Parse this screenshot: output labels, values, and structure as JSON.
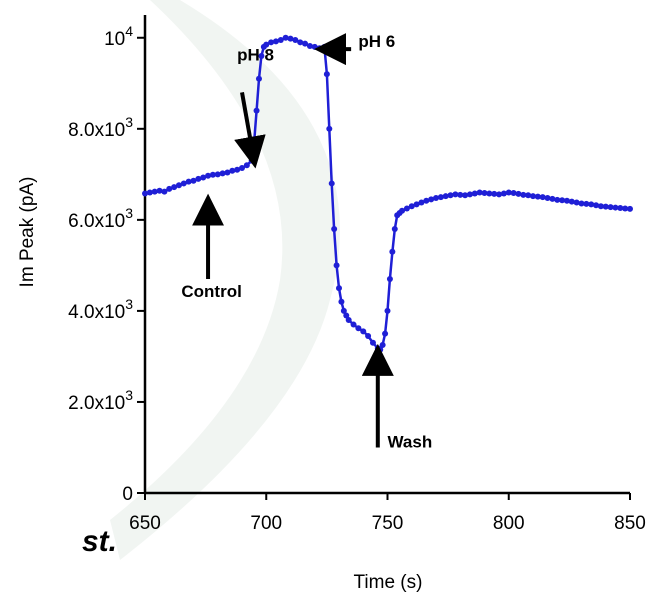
{
  "chart_data": {
    "type": "line",
    "title": "",
    "xlabel": "Time (s)",
    "ylabel": "Im Peak (pA)",
    "xlim": [
      650,
      850
    ],
    "ylim": [
      0,
      10500
    ],
    "xticks": [
      650,
      700,
      750,
      800,
      850
    ],
    "yticks": [
      {
        "value": 0,
        "base": "0",
        "exp": ""
      },
      {
        "value": 2000,
        "base": "2.0x10",
        "exp": "3"
      },
      {
        "value": 4000,
        "base": "4.0x10",
        "exp": "3"
      },
      {
        "value": 6000,
        "base": "6.0x10",
        "exp": "3"
      },
      {
        "value": 8000,
        "base": "8.0x10",
        "exp": "3"
      },
      {
        "value": 10000,
        "base": "10",
        "exp": "4"
      }
    ],
    "grid": false,
    "line_color": "#1f1fd6",
    "series": [
      {
        "x": [
          650,
          652,
          654,
          656,
          658,
          660,
          662,
          664,
          666,
          668,
          670,
          672,
          674,
          676,
          678,
          680,
          682,
          684,
          686,
          688,
          690,
          692,
          694,
          695,
          696,
          697,
          698,
          699,
          700,
          702,
          704,
          706,
          708,
          710,
          712,
          714,
          716,
          718,
          720,
          722,
          723,
          724,
          725,
          726,
          727,
          728,
          729,
          730,
          731,
          732,
          733,
          734,
          736,
          738,
          740,
          742,
          744,
          746,
          747,
          748,
          749,
          750,
          751,
          752,
          753,
          754,
          755,
          756,
          758,
          760,
          762,
          764,
          766,
          768,
          770,
          772,
          774,
          776,
          778,
          780,
          782,
          784,
          786,
          788,
          790,
          792,
          794,
          796,
          798,
          800,
          802,
          804,
          806,
          808,
          810,
          812,
          814,
          816,
          818,
          820,
          822,
          824,
          826,
          828,
          830,
          832,
          834,
          836,
          838,
          840,
          842,
          844,
          846,
          848,
          850
        ],
        "values": [
          6580,
          6600,
          6620,
          6640,
          6620,
          6680,
          6720,
          6760,
          6800,
          6840,
          6860,
          6900,
          6930,
          6970,
          6990,
          7000,
          7020,
          7040,
          7080,
          7100,
          7140,
          7200,
          7300,
          7700,
          8400,
          9100,
          9600,
          9800,
          9850,
          9900,
          9920,
          9950,
          10000,
          9980,
          9950,
          9900,
          9870,
          9820,
          9800,
          9770,
          9750,
          9800,
          9200,
          8000,
          6800,
          5800,
          5000,
          4500,
          4200,
          4000,
          3900,
          3800,
          3700,
          3620,
          3550,
          3450,
          3300,
          3180,
          3150,
          3250,
          3500,
          4000,
          4700,
          5300,
          5800,
          6100,
          6150,
          6200,
          6250,
          6300,
          6340,
          6380,
          6420,
          6450,
          6480,
          6500,
          6520,
          6540,
          6560,
          6550,
          6540,
          6560,
          6580,
          6600,
          6590,
          6580,
          6570,
          6560,
          6580,
          6600,
          6590,
          6570,
          6550,
          6540,
          6520,
          6510,
          6500,
          6480,
          6460,
          6440,
          6430,
          6420,
          6400,
          6380,
          6360,
          6350,
          6340,
          6320,
          6300,
          6290,
          6280,
          6270,
          6260,
          6250,
          6240
        ]
      }
    ],
    "annotations": [
      {
        "text": "pH 8",
        "x": 688,
        "y": 9500,
        "arrow_from": [
          690,
          8800
        ],
        "arrow_to": [
          695,
          7300
        ]
      },
      {
        "text": "pH 6",
        "x": 738,
        "y": 9800,
        "arrow_from": [
          735,
          9750
        ],
        "arrow_to": [
          723,
          9750
        ]
      },
      {
        "text": "Control",
        "x": 665,
        "y": 4300,
        "arrow_from": [
          676,
          4700
        ],
        "arrow_to": [
          676,
          6400
        ]
      },
      {
        "text": "Wash",
        "x": 750,
        "y": 1000,
        "arrow_from": [
          746,
          1000
        ],
        "arrow_to": [
          746,
          3100
        ]
      }
    ]
  },
  "corner_text": "st."
}
